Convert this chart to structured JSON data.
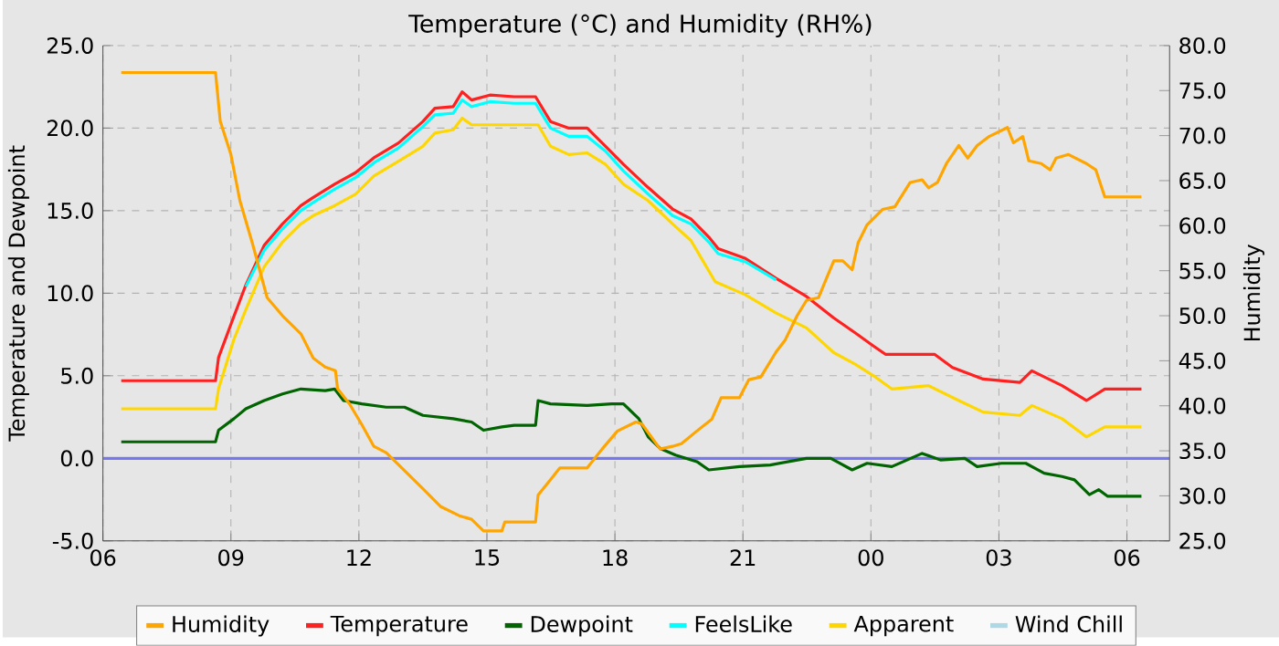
{
  "chart_data": {
    "type": "line",
    "title": "Temperature (°C) and Humidity (RH%)",
    "ylabel": "Temperature and Dewpoint",
    "y2label": "Humidity",
    "xlim": [
      6,
      31
    ],
    "xticks": [
      {
        "value": 6,
        "label": "06"
      },
      {
        "value": 9,
        "label": "09"
      },
      {
        "value": 12,
        "label": "12"
      },
      {
        "value": 15,
        "label": "15"
      },
      {
        "value": 18,
        "label": "18"
      },
      {
        "value": 21,
        "label": "21"
      },
      {
        "value": 24,
        "label": "00"
      },
      {
        "value": 27,
        "label": "03"
      },
      {
        "value": 30,
        "label": "06"
      }
    ],
    "ylim": [
      -5,
      25
    ],
    "yticks": [
      {
        "value": -5,
        "label": "-5.0"
      },
      {
        "value": 0,
        "label": "0.0"
      },
      {
        "value": 5,
        "label": "5.0"
      },
      {
        "value": 10,
        "label": "10.0"
      },
      {
        "value": 15,
        "label": "15.0"
      },
      {
        "value": 20,
        "label": "20.0"
      },
      {
        "value": 25,
        "label": "25.0"
      }
    ],
    "y2lim": [
      25,
      80
    ],
    "y2ticks": [
      {
        "value": 25,
        "label": "25.0"
      },
      {
        "value": 30,
        "label": "30.0"
      },
      {
        "value": 35,
        "label": "35.0"
      },
      {
        "value": 40,
        "label": "40.0"
      },
      {
        "value": 45,
        "label": "45.0"
      },
      {
        "value": 50,
        "label": "50.0"
      },
      {
        "value": 55,
        "label": "55.0"
      },
      {
        "value": 60,
        "label": "60.0"
      },
      {
        "value": 65,
        "label": "65.0"
      },
      {
        "value": 70,
        "label": "70.0"
      },
      {
        "value": 75,
        "label": "75.0"
      },
      {
        "value": 80,
        "label": "80.0"
      }
    ],
    "grid": true,
    "legend": "bottom",
    "ref_lines": [
      {
        "axis": "y",
        "value": 0,
        "color": "#7777ee"
      }
    ],
    "series": [
      {
        "name": "Humidity",
        "color": "#ffa500",
        "axis": "y2",
        "x": [
          6.43,
          8.64,
          8.75,
          9.0,
          9.21,
          9.5,
          9.85,
          10.21,
          10.64,
          10.93,
          11.21,
          11.45,
          11.5,
          11.78,
          12.07,
          12.35,
          12.64,
          13.07,
          13.5,
          13.92,
          14.35,
          14.64,
          14.92,
          15.35,
          15.42,
          16.14,
          16.2,
          16.49,
          16.71,
          17.35,
          17.7,
          18.06,
          18.49,
          18.63,
          19.06,
          19.35,
          19.56,
          19.92,
          20.27,
          20.49,
          20.92,
          21.14,
          21.42,
          21.78,
          21.99,
          22.27,
          22.49,
          22.77,
          22.98,
          23.13,
          23.34,
          23.56,
          23.7,
          23.91,
          24.27,
          24.56,
          24.92,
          25.2,
          25.35,
          25.56,
          25.77,
          26.06,
          26.27,
          26.49,
          26.77,
          27.2,
          27.34,
          27.56,
          27.7,
          27.99,
          28.2,
          28.34,
          28.63,
          29.05,
          29.27,
          29.48,
          30.34
        ],
        "values": [
          77,
          77,
          71.6,
          67.9,
          62.8,
          58.1,
          52.0,
          50.0,
          48.0,
          45.3,
          44.3,
          43.9,
          41.9,
          40.2,
          37.9,
          35.5,
          34.8,
          32.8,
          30.8,
          28.8,
          27.8,
          27.4,
          26.1,
          26.1,
          27.1,
          27.1,
          30.1,
          31.8,
          33.1,
          33.1,
          35.2,
          37.2,
          38.2,
          38.0,
          35.2,
          35.5,
          35.8,
          37.2,
          38.5,
          40.9,
          40.9,
          42.9,
          43.2,
          46.0,
          47.3,
          50.0,
          51.7,
          52.0,
          54.4,
          56.1,
          56.1,
          55.1,
          58.1,
          60.1,
          61.8,
          62.1,
          64.8,
          65.1,
          64.2,
          64.8,
          66.9,
          68.9,
          67.5,
          68.9,
          69.9,
          70.9,
          69.2,
          69.9,
          67.2,
          66.9,
          66.2,
          67.5,
          67.9,
          66.9,
          66.2,
          63.2,
          63.2
        ]
      },
      {
        "name": "Temperature",
        "color": "#ff2020",
        "x": [
          6.43,
          8.64,
          8.71,
          9.07,
          9.35,
          9.78,
          10.21,
          10.64,
          10.93,
          11.43,
          11.92,
          12.35,
          12.93,
          13.5,
          13.78,
          14.21,
          14.42,
          14.64,
          15.07,
          15.64,
          16.14,
          16.49,
          16.92,
          17.35,
          17.78,
          18.2,
          18.78,
          19.35,
          19.78,
          20.2,
          20.42,
          21.06,
          21.78,
          22.49,
          23.13,
          23.63,
          24.06,
          24.34,
          25.49,
          25.91,
          26.63,
          27.49,
          27.77,
          28.48,
          29.05,
          29.48,
          30.34
        ],
        "values": [
          4.7,
          4.7,
          6.1,
          8.6,
          10.5,
          12.9,
          14.2,
          15.3,
          15.8,
          16.6,
          17.3,
          18.2,
          19.1,
          20.4,
          21.2,
          21.3,
          22.2,
          21.7,
          22.0,
          21.9,
          21.9,
          20.4,
          20.0,
          20.0,
          18.9,
          17.8,
          16.4,
          15.1,
          14.5,
          13.4,
          12.7,
          12.1,
          10.9,
          9.8,
          8.5,
          7.6,
          6.8,
          6.3,
          6.3,
          5.5,
          4.8,
          4.6,
          5.3,
          4.4,
          3.5,
          4.2,
          4.2
        ]
      },
      {
        "name": "Dewpoint",
        "color": "#006400",
        "x": [
          6.43,
          8.64,
          8.71,
          9.07,
          9.35,
          9.78,
          10.21,
          10.64,
          11.21,
          11.43,
          11.64,
          12.07,
          12.64,
          13.07,
          13.5,
          14.21,
          14.64,
          14.92,
          15.35,
          15.64,
          16.14,
          16.2,
          16.49,
          17.35,
          17.92,
          18.2,
          18.56,
          18.78,
          19.06,
          19.42,
          19.92,
          20.2,
          20.92,
          21.64,
          22.49,
          23.06,
          23.56,
          23.91,
          24.49,
          25.2,
          25.63,
          26.2,
          26.49,
          27.06,
          27.63,
          28.06,
          28.48,
          28.77,
          29.12,
          29.34,
          29.55,
          30.34
        ],
        "values": [
          1.0,
          1.0,
          1.7,
          2.4,
          3.0,
          3.5,
          3.9,
          4.2,
          4.1,
          4.2,
          3.5,
          3.3,
          3.1,
          3.1,
          2.6,
          2.4,
          2.2,
          1.7,
          1.9,
          2.0,
          2.0,
          3.5,
          3.3,
          3.2,
          3.3,
          3.3,
          2.4,
          1.3,
          0.6,
          0.2,
          -0.2,
          -0.7,
          -0.5,
          -0.4,
          0.0,
          0.0,
          -0.7,
          -0.3,
          -0.5,
          0.3,
          -0.1,
          0.0,
          -0.5,
          -0.3,
          -0.3,
          -0.9,
          -1.1,
          -1.3,
          -2.2,
          -1.9,
          -2.3,
          -2.3
        ]
      },
      {
        "name": "FeelsLike",
        "color": "#00ffff",
        "x": [
          9.35,
          9.78,
          10.21,
          10.64,
          10.93,
          11.43,
          11.92,
          12.35,
          12.93,
          13.5,
          13.78,
          14.21,
          14.42,
          14.64,
          15.07,
          15.64,
          16.14,
          16.49,
          16.92,
          17.35,
          17.78,
          18.2,
          18.78,
          19.35,
          19.78,
          20.2,
          20.42,
          21.06,
          21.78
        ],
        "values": [
          10.4,
          12.6,
          13.9,
          15.0,
          15.5,
          16.3,
          17.0,
          17.9,
          18.8,
          20.1,
          20.8,
          20.9,
          21.7,
          21.3,
          21.6,
          21.5,
          21.5,
          20.0,
          19.5,
          19.5,
          18.6,
          17.4,
          16.0,
          14.7,
          14.2,
          13.1,
          12.4,
          11.9,
          10.8
        ]
      },
      {
        "name": "Apparent",
        "color": "#ffd700",
        "x": [
          6.43,
          8.64,
          8.71,
          9.07,
          9.35,
          9.78,
          10.21,
          10.64,
          10.93,
          11.43,
          11.92,
          12.35,
          12.93,
          13.5,
          13.78,
          14.21,
          14.42,
          14.64,
          15.64,
          16.2,
          16.49,
          16.92,
          17.35,
          17.78,
          18.2,
          18.78,
          19.35,
          19.78,
          20.35,
          21.06,
          21.78,
          22.49,
          23.13,
          23.63,
          24.06,
          24.49,
          25.35,
          26.06,
          26.63,
          27.49,
          27.77,
          28.48,
          29.05,
          29.48,
          30.34
        ],
        "values": [
          3.0,
          3.0,
          4.2,
          7.2,
          9.0,
          11.6,
          13.1,
          14.2,
          14.7,
          15.3,
          16.0,
          17.1,
          18.0,
          18.9,
          19.7,
          19.9,
          20.6,
          20.2,
          20.2,
          20.2,
          18.9,
          18.4,
          18.5,
          17.8,
          16.6,
          15.6,
          14.2,
          13.2,
          10.7,
          9.9,
          8.8,
          7.9,
          6.4,
          5.7,
          5.0,
          4.2,
          4.4,
          3.5,
          2.8,
          2.6,
          3.2,
          2.4,
          1.3,
          1.9,
          1.9
        ]
      },
      {
        "name": "Wind Chill",
        "color": "#add8e6"
      }
    ]
  }
}
